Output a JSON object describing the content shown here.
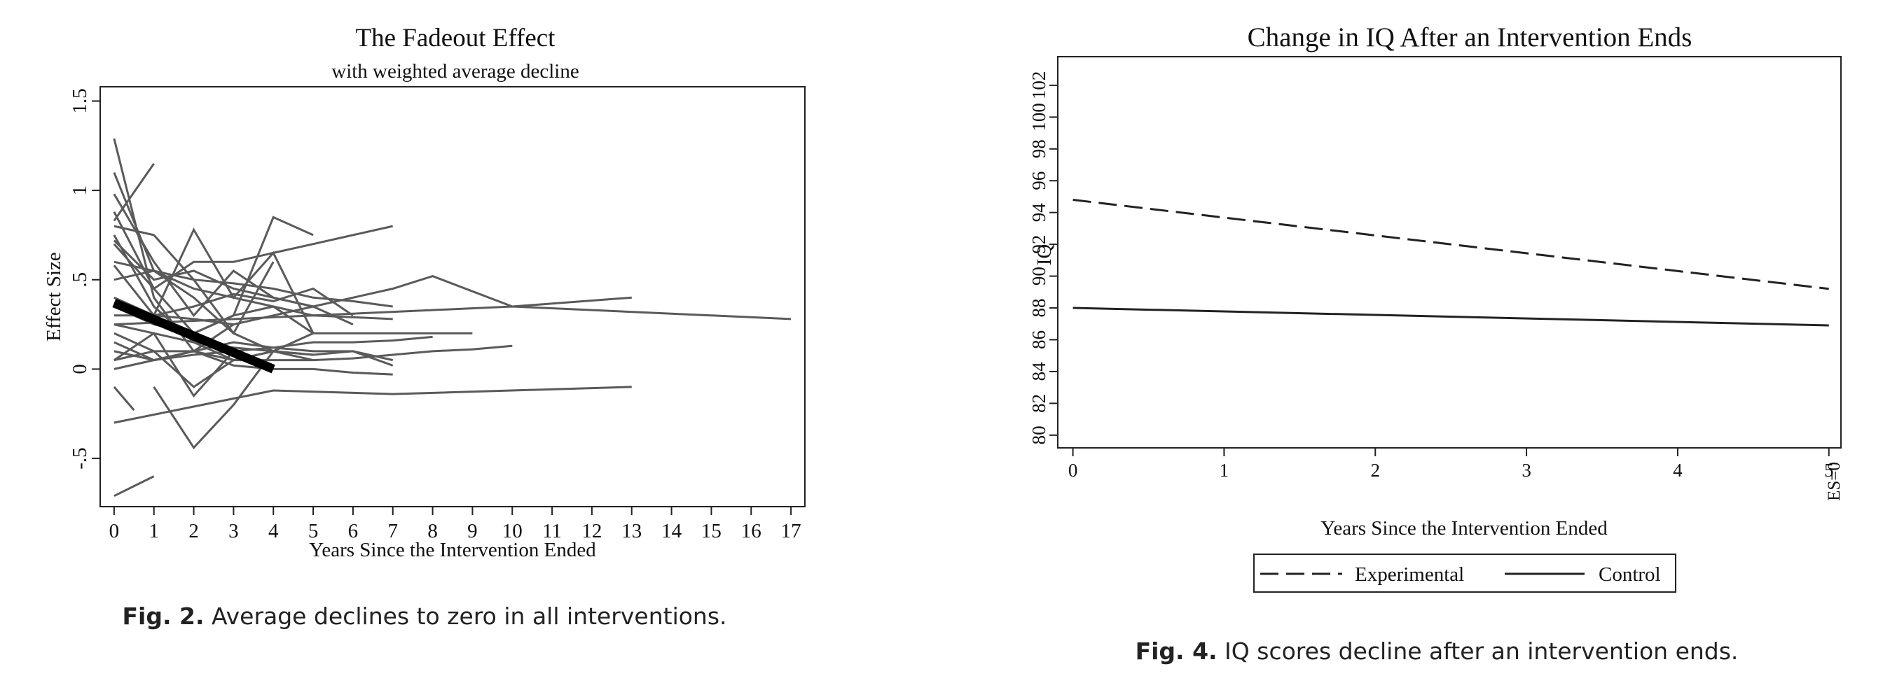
{
  "chart_data": [
    {
      "type": "line",
      "title": "The Fadeout Effect",
      "subtitle": "with weighted average decline",
      "xlabel": "Years Since the Intervention Ended",
      "ylabel": "Effect Size",
      "xlim": [
        -0.35,
        17.35
      ],
      "ylim": [
        -0.77,
        1.58
      ],
      "x_ticks": [
        0,
        1,
        2,
        3,
        4,
        5,
        6,
        7,
        8,
        9,
        10,
        11,
        12,
        13,
        14,
        15,
        16,
        17
      ],
      "x_tick_labels": [
        "0",
        "1",
        "2",
        "3",
        "4",
        "5",
        "6",
        "7",
        "8",
        "9",
        "10",
        "11",
        "12",
        "13",
        "14",
        "15",
        "16",
        "17"
      ],
      "y_ticks": [
        -0.5,
        0,
        0.5,
        1,
        1.5
      ],
      "y_tick_labels": [
        "-.5",
        "0",
        ".5",
        "1",
        "1.5"
      ],
      "grid": false,
      "colors": {
        "study_lines": "#5a5a5a",
        "average_line": "#000000"
      },
      "average_series": {
        "name": "weighted average decline",
        "x": [
          0,
          4
        ],
        "y": [
          0.37,
          0.0
        ]
      },
      "study_series": [
        {
          "x": [
            0,
            1
          ],
          "y": [
            0.83,
            1.15
          ]
        },
        {
          "x": [
            0,
            1,
            2,
            3
          ],
          "y": [
            1.29,
            0.4,
            0.1,
            0.25
          ]
        },
        {
          "x": [
            0,
            1,
            2,
            3,
            4
          ],
          "y": [
            1.1,
            0.55,
            0.4,
            0.2,
            0.6
          ]
        },
        {
          "x": [
            0,
            1,
            2,
            3,
            4,
            5
          ],
          "y": [
            0.98,
            0.6,
            0.3,
            0.55,
            0.4,
            0.35
          ]
        },
        {
          "x": [
            0,
            1,
            2,
            3,
            4,
            5
          ],
          "y": [
            0.88,
            0.45,
            0.2,
            0.3,
            0.85,
            0.75
          ]
        },
        {
          "x": [
            0,
            1,
            2,
            3,
            4,
            5
          ],
          "y": [
            0.8,
            0.75,
            0.5,
            0.2,
            0.1,
            0.05
          ]
        },
        {
          "x": [
            0,
            1,
            2,
            3,
            4,
            5
          ],
          "y": [
            0.75,
            0.35,
            0.15,
            0.05,
            0.1,
            0.2
          ]
        },
        {
          "x": [
            0,
            1,
            2,
            3,
            4,
            5,
            6
          ],
          "y": [
            0.72,
            0.5,
            0.55,
            0.45,
            0.4,
            0.35,
            0.25
          ]
        },
        {
          "x": [
            0,
            1,
            2,
            3,
            4,
            5,
            6,
            7
          ],
          "y": [
            0.7,
            0.45,
            0.6,
            0.6,
            0.65,
            0.7,
            0.75,
            0.8
          ]
        },
        {
          "x": [
            0,
            1,
            2,
            3,
            4,
            5,
            7
          ],
          "y": [
            0.6,
            0.55,
            0.45,
            0.4,
            0.35,
            0.3,
            0.28
          ]
        },
        {
          "x": [
            0,
            1,
            2,
            3,
            4,
            5
          ],
          "y": [
            0.58,
            0.3,
            0.78,
            0.4,
            0.65,
            0.2
          ]
        },
        {
          "x": [
            0,
            1,
            2,
            3,
            4,
            5,
            6,
            7
          ],
          "y": [
            0.5,
            0.55,
            0.5,
            0.48,
            0.45,
            0.4,
            0.38,
            0.35
          ]
        },
        {
          "x": [
            0,
            1,
            2,
            3,
            4,
            5,
            6
          ],
          "y": [
            0.4,
            0.3,
            0.35,
            0.42,
            0.38,
            0.45,
            0.3
          ]
        },
        {
          "x": [
            0,
            1,
            2,
            3,
            4,
            5,
            7,
            8,
            9
          ],
          "y": [
            0.35,
            0.25,
            0.2,
            0.3,
            0.35,
            0.2,
            0.2,
            0.2,
            0.2
          ]
        },
        {
          "x": [
            0,
            1,
            2,
            3,
            4,
            5,
            6,
            7,
            8,
            10,
            13
          ],
          "y": [
            0.3,
            0.3,
            0.28,
            0.25,
            0.3,
            0.35,
            0.4,
            0.45,
            0.52,
            0.35,
            0.4
          ]
        },
        {
          "x": [
            0,
            10,
            17
          ],
          "y": [
            0.25,
            0.35,
            0.28
          ]
        },
        {
          "x": [
            0,
            1,
            2,
            3,
            4,
            5
          ],
          "y": [
            0.25,
            0.2,
            0.15,
            0.12,
            0.1,
            0.08
          ]
        },
        {
          "x": [
            0,
            1,
            2,
            3,
            4,
            5,
            6,
            7
          ],
          "y": [
            0.2,
            0.1,
            -0.1,
            0.05,
            0.1,
            0.08,
            0.1,
            0.05
          ]
        },
        {
          "x": [
            0,
            1,
            2,
            3,
            4,
            5,
            6,
            7
          ],
          "y": [
            0.15,
            0.05,
            0.1,
            0.15,
            0.12,
            0.1,
            0.1,
            0.02
          ]
        },
        {
          "x": [
            0,
            1,
            2,
            3,
            4,
            5,
            6,
            7,
            8
          ],
          "y": [
            0.1,
            0.05,
            0.08,
            0.1,
            0.12,
            0.15,
            0.15,
            0.16,
            0.18
          ]
        },
        {
          "x": [
            0,
            1,
            2,
            3,
            4,
            5,
            6,
            7,
            8,
            9,
            10
          ],
          "y": [
            0.05,
            0.1,
            0.1,
            0.05,
            0.05,
            0.05,
            0.06,
            0.08,
            0.1,
            0.11,
            0.13
          ]
        },
        {
          "x": [
            0,
            1,
            2,
            3,
            4,
            5,
            6,
            7
          ],
          "y": [
            0.0,
            0.05,
            0.1,
            0.02,
            0.0,
            0.0,
            -0.02,
            -0.03
          ]
        },
        {
          "x": [
            0,
            0.5
          ],
          "y": [
            -0.1,
            -0.23
          ]
        },
        {
          "x": [
            0,
            4,
            7,
            13
          ],
          "y": [
            -0.3,
            -0.12,
            -0.14,
            -0.1
          ]
        },
        {
          "x": [
            1,
            2,
            3,
            4
          ],
          "y": [
            -0.1,
            -0.44,
            -0.2,
            0.1
          ]
        },
        {
          "x": [
            0,
            1
          ],
          "y": [
            -0.71,
            -0.6
          ]
        },
        {
          "x": [
            0,
            1,
            2,
            3
          ],
          "y": [
            0.05,
            0.2,
            -0.15,
            0.1
          ]
        }
      ]
    },
    {
      "type": "line",
      "title": "Change in IQ After an Intervention Ends",
      "xlabel": "Years Since the Intervention Ended",
      "ylabel": "IQ",
      "xlim": [
        -0.1,
        5.08
      ],
      "ylim": [
        79.2,
        103.8
      ],
      "x_ticks": [
        0,
        1,
        2,
        3,
        4,
        5
      ],
      "x_tick_labels": [
        "0",
        "1",
        "2",
        "3",
        "4",
        "5"
      ],
      "extra_x_label": "ES=0",
      "y_ticks": [
        80,
        82,
        84,
        86,
        88,
        90,
        92,
        94,
        96,
        98,
        100,
        102
      ],
      "y_tick_labels": [
        "80",
        "82",
        "84",
        "86",
        "88",
        "90",
        "92",
        "94",
        "96",
        "98",
        "100",
        "102"
      ],
      "grid": false,
      "legend_position": "bottom",
      "series": [
        {
          "name": "Experimental",
          "style": "dashed",
          "x": [
            0,
            5
          ],
          "y": [
            94.8,
            89.2
          ]
        },
        {
          "name": "Control",
          "style": "solid",
          "x": [
            0,
            5
          ],
          "y": [
            88.0,
            86.9
          ]
        }
      ]
    }
  ],
  "captions": {
    "fig2_label": "Fig. 2.",
    "fig2_text": " Average declines to zero in all interventions.",
    "fig4_label": "Fig. 4.",
    "fig4_text": " IQ scores decline after an intervention ends."
  }
}
